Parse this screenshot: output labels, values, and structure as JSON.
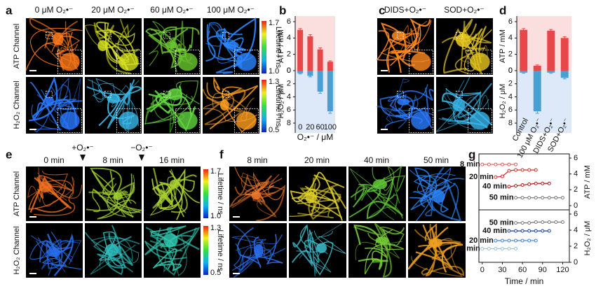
{
  "panels": {
    "a": {
      "letter": "a",
      "columns": [
        "0 μM O₂•⁻",
        "20 μM O₂•⁻",
        "60 μM O₂•⁻",
        "100 μM O₂•⁻"
      ],
      "rows": [
        "ATP Channel",
        "H₂O₂ Channel"
      ],
      "roi": "ROI",
      "colorbars": [
        {
          "max": "1.7",
          "min": "1.0",
          "label": "Lifetime / ns"
        },
        {
          "max": "1.3",
          "min": "0.5",
          "label": "Lifetime / ns"
        }
      ]
    },
    "b": {
      "letter": "b"
    },
    "c": {
      "letter": "c",
      "columns": [
        "DIDS+O₂•⁻",
        "SOD+O₂•⁻"
      ]
    },
    "d": {
      "letter": "d"
    },
    "e": {
      "letter": "e",
      "columns": [
        "0 min",
        "8 min",
        "16 min"
      ],
      "steps": [
        "+O₂•⁻",
        "−O₂•⁻"
      ],
      "rows": [
        "ATP Channel",
        "H₂O₂ Channel"
      ],
      "colorbars": [
        {
          "max": "1.7",
          "min": "1.0",
          "label": "Lifetime / ns"
        },
        {
          "max": "1.3",
          "min": "0.5",
          "label": "Lifetime / ns"
        }
      ]
    },
    "f": {
      "letter": "f",
      "columns": [
        "8 min",
        "20 min",
        "40 min",
        "50 min"
      ]
    },
    "g": {
      "letter": "g"
    }
  },
  "chart_data": [
    {
      "type": "bar",
      "categories": [
        "0",
        "20",
        "60",
        "100"
      ],
      "xlabel": "O₂•⁻ / μM",
      "ylabel": "ATP / mM",
      "ylim": [
        0,
        6
      ],
      "yticks": [
        0,
        2,
        4,
        6
      ],
      "y2label": "H₂O₂ / μM",
      "y2lim": [
        0,
        8
      ],
      "y2ticks": [
        0,
        2,
        4,
        6,
        8
      ],
      "series": [
        {
          "color": "#e8474a",
          "values": [
            5.0,
            4.2,
            2.6,
            1.1
          ],
          "errors": [
            0.15,
            0.2,
            0.2,
            0.1
          ]
        },
        {
          "color": "#4a9fd2",
          "axis": "y2",
          "values": [
            0.4,
            0.8,
            3.2,
            6.2
          ],
          "errors": [
            0.1,
            0.15,
            0.25,
            0.3
          ]
        }
      ]
    },
    {
      "type": "bar",
      "categories": [
        "Control",
        "100 μM O₂•⁻",
        "DIDS+O₂•⁻",
        "SOD+O₂•⁻"
      ],
      "ylabel": "ATP / mM",
      "ylim": [
        0,
        6
      ],
      "yticks": [
        0,
        2,
        4,
        6
      ],
      "y2label": "H₂O₂ / μM",
      "y2lim": [
        0,
        8
      ],
      "y2ticks": [
        0,
        2,
        4,
        6,
        8
      ],
      "series": [
        {
          "color": "#e8474a",
          "values": [
            5.0,
            0.6,
            4.9,
            4.0
          ],
          "errors": [
            0.15,
            0.1,
            0.15,
            0.15
          ]
        },
        {
          "color": "#4a9fd2",
          "axis": "y2",
          "values": [
            0.3,
            6.2,
            0.3,
            1.1
          ],
          "errors": [
            0.1,
            0.3,
            0.1,
            0.15
          ]
        }
      ]
    },
    {
      "type": "line",
      "xlabel": "Time / min",
      "xlim": [
        -5,
        130
      ],
      "xticks": [
        0,
        30,
        60,
        90,
        120
      ],
      "ylabel": "ATP / mM",
      "ylim": [
        0,
        6
      ],
      "yticks": [
        0,
        2,
        4,
        6
      ],
      "y2label": "H₂O₂ / μM",
      "y2lim": [
        0,
        6
      ],
      "y2ticks": [
        0,
        2,
        4,
        6
      ],
      "series": [
        {
          "name": "8 min",
          "color": "#e8585a",
          "x": [
            0,
            10,
            20,
            30,
            40,
            50
          ],
          "values": [
            5.2,
            5.2,
            5.2,
            5.2,
            5.2,
            5.2
          ]
        },
        {
          "name": "20 min",
          "color": "#d42a2a",
          "x": [
            20,
            30,
            40,
            50,
            60,
            70,
            80
          ],
          "values": [
            3.6,
            3.7,
            4.4,
            4.5,
            4.5,
            4.5,
            4.5
          ]
        },
        {
          "name": "40 min",
          "color": "#b01818",
          "x": [
            40,
            50,
            60,
            70,
            80,
            90,
            100
          ],
          "values": [
            2.4,
            2.5,
            2.6,
            2.7,
            2.8,
            2.8,
            2.8
          ]
        },
        {
          "name": "50 min",
          "color": "#777777",
          "x": [
            50,
            60,
            70,
            80,
            90,
            100,
            110,
            120
          ],
          "values": [
            1.0,
            1.0,
            1.0,
            1.0,
            1.0,
            1.0,
            1.0,
            1.0
          ]
        },
        {
          "name": "50 min",
          "color": "#777777",
          "axis": "y2",
          "x": [
            50,
            60,
            70,
            80,
            90,
            100,
            110,
            120
          ],
          "values": [
            4.9,
            4.9,
            4.9,
            5.0,
            5.0,
            5.0,
            5.0,
            5.0
          ]
        },
        {
          "name": "40 min",
          "color": "#1a3f9a",
          "axis": "y2",
          "x": [
            40,
            50,
            60,
            70,
            80,
            90,
            100
          ],
          "values": [
            3.9,
            3.9,
            3.9,
            3.9,
            3.9,
            3.9,
            3.9
          ]
        },
        {
          "name": "20 min",
          "color": "#3a7fd8",
          "axis": "y2",
          "x": [
            20,
            30,
            40,
            50,
            60,
            70,
            80
          ],
          "values": [
            2.7,
            2.7,
            2.7,
            2.7,
            2.7,
            2.7,
            2.7
          ]
        },
        {
          "name": "8 min",
          "color": "#8ac4ec",
          "axis": "y2",
          "x": [
            0,
            10,
            20,
            30,
            40,
            50
          ],
          "values": [
            1.7,
            1.7,
            1.7,
            1.7,
            1.7,
            1.7
          ]
        }
      ]
    }
  ]
}
